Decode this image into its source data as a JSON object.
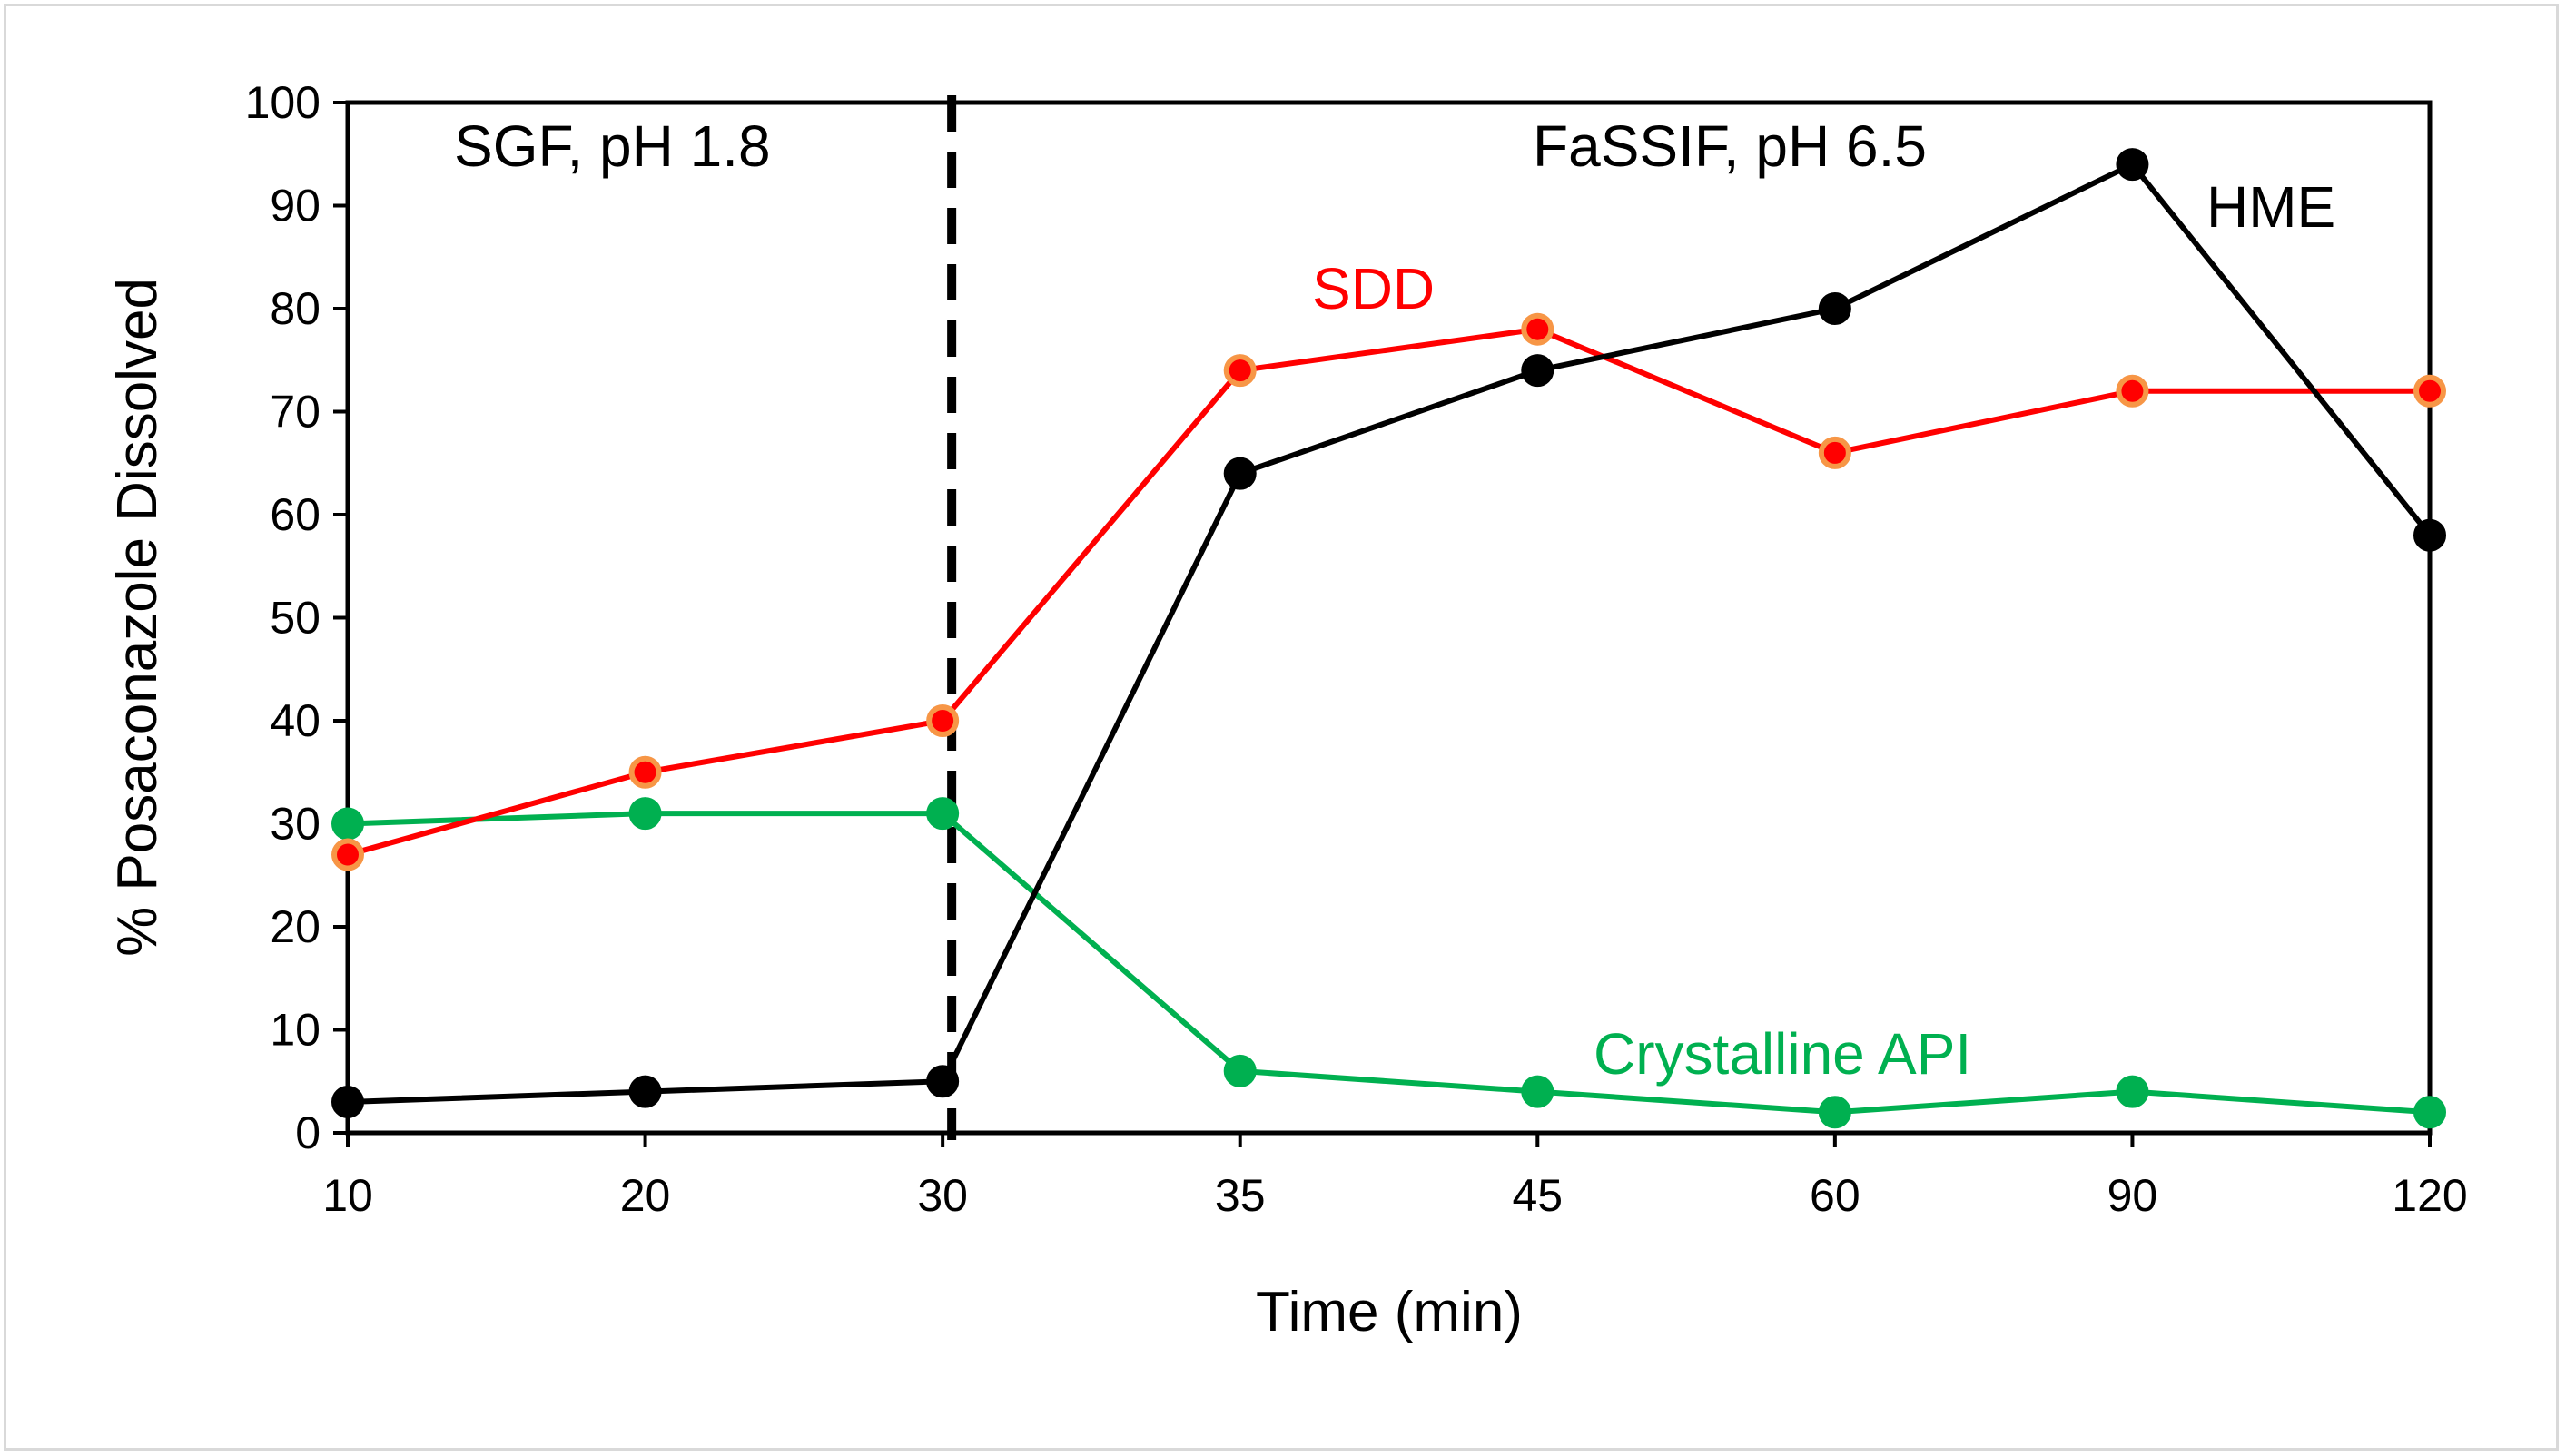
{
  "chart_data": {
    "type": "line",
    "title": "",
    "xlabel": "Time (min)",
    "ylabel": "% Posaconazole Dissolved",
    "categories": [
      "10",
      "20",
      "30",
      "35",
      "45",
      "60",
      "90",
      "120"
    ],
    "ylim": [
      0,
      100
    ],
    "yticks": [
      "0",
      "10",
      "20",
      "30",
      "40",
      "50",
      "60",
      "70",
      "80",
      "90",
      "100"
    ],
    "grid": false,
    "legend": "inline labels",
    "series": [
      {
        "name": "HME",
        "label": "HME",
        "color": "#000000",
        "marker_color": "#000000",
        "marker_edge": "#000000",
        "values": [
          3,
          4,
          5,
          64,
          74,
          80,
          94,
          58
        ]
      },
      {
        "name": "SDD",
        "label": "SDD",
        "color": "#ff0000",
        "marker_color": "#ff0000",
        "marker_edge": "#f79646",
        "values": [
          27,
          35,
          40,
          74,
          78,
          66,
          72,
          72
        ]
      },
      {
        "name": "Crystalline API",
        "label": "Crystalline API",
        "color": "#00b050",
        "marker_color": "#00b050",
        "marker_edge": "#00b050",
        "values": [
          30,
          31,
          31,
          6,
          4,
          2,
          4,
          2
        ]
      }
    ],
    "phase_divider": {
      "after_category": "30",
      "style": "dashed"
    },
    "annotations": {
      "left_phase": "SGF, pH 1.8",
      "right_phase": "FaSSIF, pH 6.5"
    }
  }
}
